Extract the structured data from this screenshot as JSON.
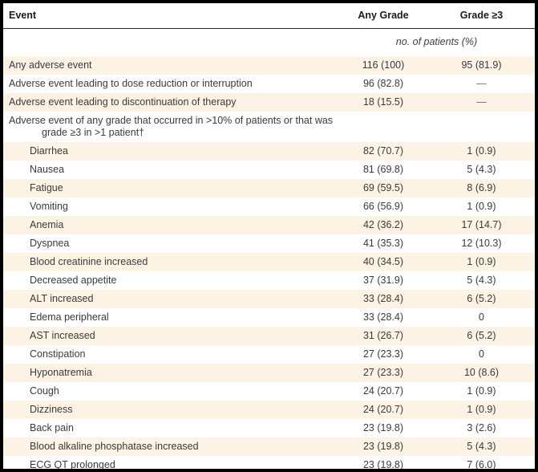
{
  "colors": {
    "stripe": "#fdf3e5",
    "frame_border": "#000000",
    "header_rule": "#2a2a2a",
    "text": "#3a3a3a"
  },
  "table": {
    "columns": {
      "event": "Event",
      "any_grade": "Any Grade",
      "grade_ge3": "Grade ≥3"
    },
    "units_note": "no. of patients (%)",
    "rows": [
      {
        "event": "Any adverse event",
        "any_grade": "116 (100)",
        "grade_ge3": "95 (81.9)",
        "indent": 0,
        "wrap": false
      },
      {
        "event": "Adverse event leading to dose reduction or interruption",
        "any_grade": "96 (82.8)",
        "grade_ge3": "—",
        "indent": 0,
        "wrap": false
      },
      {
        "event": "Adverse event leading to discontinuation of therapy",
        "any_grade": "18 (15.5)",
        "grade_ge3": "—",
        "indent": 0,
        "wrap": false
      },
      {
        "event": "Adverse event of any grade that occurred in >10% of patients or that was grade ≥3 in >1 patient†",
        "any_grade": "",
        "grade_ge3": "",
        "indent": 0,
        "wrap": true
      },
      {
        "event": "Diarrhea",
        "any_grade": "82 (70.7)",
        "grade_ge3": "1 (0.9)",
        "indent": 1,
        "wrap": false
      },
      {
        "event": "Nausea",
        "any_grade": "81 (69.8)",
        "grade_ge3": "5 (4.3)",
        "indent": 1,
        "wrap": false
      },
      {
        "event": "Fatigue",
        "any_grade": "69 (59.5)",
        "grade_ge3": "8 (6.9)",
        "indent": 1,
        "wrap": false
      },
      {
        "event": "Vomiting",
        "any_grade": "66 (56.9)",
        "grade_ge3": "1 (0.9)",
        "indent": 1,
        "wrap": false
      },
      {
        "event": "Anemia",
        "any_grade": "42 (36.2)",
        "grade_ge3": "17 (14.7)",
        "indent": 1,
        "wrap": false
      },
      {
        "event": "Dyspnea",
        "any_grade": "41 (35.3)",
        "grade_ge3": "12 (10.3)",
        "indent": 1,
        "wrap": false
      },
      {
        "event": "Blood creatinine increased",
        "any_grade": "40 (34.5)",
        "grade_ge3": "1 (0.9)",
        "indent": 1,
        "wrap": false
      },
      {
        "event": "Decreased appetite",
        "any_grade": "37 (31.9)",
        "grade_ge3": "5 (4.3)",
        "indent": 1,
        "wrap": false
      },
      {
        "event": "ALT increased",
        "any_grade": "33 (28.4)",
        "grade_ge3": "6 (5.2)",
        "indent": 1,
        "wrap": false
      },
      {
        "event": "Edema peripheral",
        "any_grade": "33 (28.4)",
        "grade_ge3": "0",
        "indent": 1,
        "wrap": false
      },
      {
        "event": "AST increased",
        "any_grade": "31 (26.7)",
        "grade_ge3": "6 (5.2)",
        "indent": 1,
        "wrap": false
      },
      {
        "event": "Constipation",
        "any_grade": "27 (23.3)",
        "grade_ge3": "0",
        "indent": 1,
        "wrap": false
      },
      {
        "event": "Hyponatremia",
        "any_grade": "27 (23.3)",
        "grade_ge3": "10 (8.6)",
        "indent": 1,
        "wrap": false
      },
      {
        "event": "Cough",
        "any_grade": "24 (20.7)",
        "grade_ge3": "1 (0.9)",
        "indent": 1,
        "wrap": false
      },
      {
        "event": "Dizziness",
        "any_grade": "24 (20.7)",
        "grade_ge3": "1 (0.9)",
        "indent": 1,
        "wrap": false
      },
      {
        "event": "Back pain",
        "any_grade": "23 (19.8)",
        "grade_ge3": "3 (2.6)",
        "indent": 1,
        "wrap": false
      },
      {
        "event": "Blood alkaline phosphatase increased",
        "any_grade": "23 (19.8)",
        "grade_ge3": "5 (4.3)",
        "indent": 1,
        "wrap": false
      },
      {
        "event": "ECG QT prolonged",
        "any_grade": "23 (19.8)",
        "grade_ge3": "7 (6.0)",
        "indent": 1,
        "wrap": false
      }
    ]
  }
}
